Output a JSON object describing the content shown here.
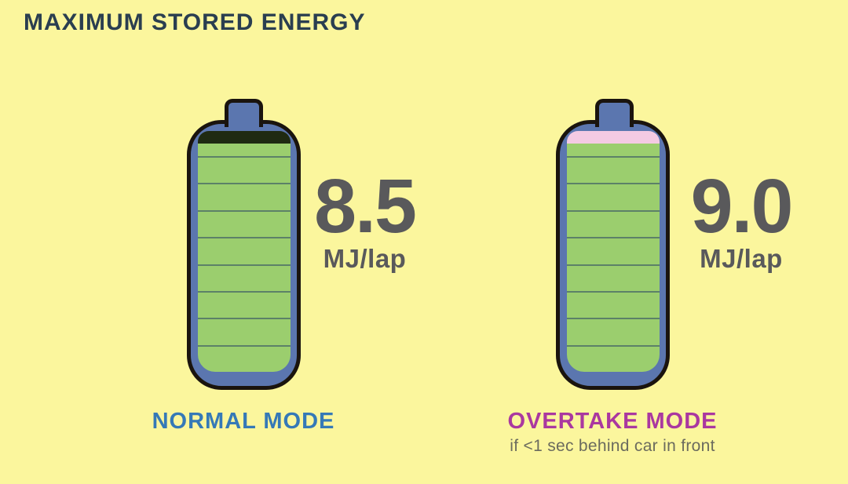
{
  "title": "MAXIMUM STORED ENERGY",
  "batteries": [
    {
      "mode": "NORMAL MODE",
      "value": "8.5",
      "unit": "MJ/lap",
      "note": "",
      "top_fill": "#1f2a12",
      "label_color": "#3579b7",
      "segments": 9
    },
    {
      "mode": "OVERTAKE MODE",
      "value": "9.0",
      "unit": "MJ/lap",
      "note": "if <1 sec behind car in front",
      "top_fill": "#f4cae3",
      "label_color": "#aa38a0",
      "segments": 9
    }
  ],
  "colors": {
    "background": "#fbf69d",
    "title_text": "#2a3e50",
    "battery_body_blue": "#5b76af",
    "battery_outline": "#1a140e",
    "charge_green": "#9bce6e",
    "segment_divider": "#5c8168",
    "normal_empty_top": "#1f2a12",
    "overtake_extra_pink": "#f4cae3",
    "value_text": "#59595b",
    "normal_label": "#3579b7",
    "overtake_label": "#aa38a0",
    "note_text": "#6b6b5e"
  },
  "chart_data": {
    "type": "bar",
    "title": "MAXIMUM STORED ENERGY",
    "categories": [
      "NORMAL MODE",
      "OVERTAKE MODE"
    ],
    "values": [
      8.5,
      9.0
    ],
    "unit": "MJ/lap",
    "annotations": [
      "",
      "if <1 sec behind car in front"
    ],
    "legend_position": "none",
    "notes": "Pictorial battery chart; overtake battery shows extra pink top segment, normal battery shows dark unfilled top segment"
  }
}
